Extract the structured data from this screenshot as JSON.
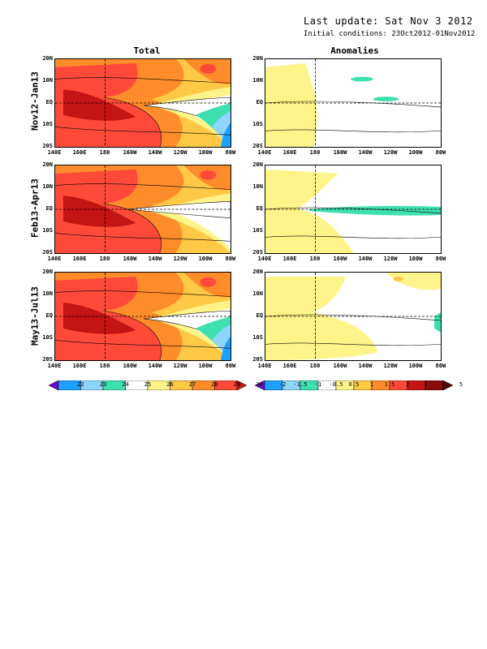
{
  "header": {
    "last_update": "Last update: Sat Nov 3 2012",
    "initial_conditions": "Initial conditions: 23Oct2012-01Nov2012"
  },
  "columns": [
    "Total",
    "Anomalies"
  ],
  "rows": [
    "Nov12-Jan13",
    "Feb13-Apr13",
    "May13-Jul13"
  ],
  "axes": {
    "y_labels": [
      "20N",
      "10N",
      "EQ",
      "10S",
      "20S"
    ],
    "x_labels": [
      "140E",
      "160E",
      "180",
      "160W",
      "140W",
      "120W",
      "100W",
      "80W"
    ]
  },
  "colorbars": {
    "total": {
      "ticks": [
        "22",
        "23",
        "24",
        "25",
        "26",
        "27",
        "28",
        "29",
        "30"
      ],
      "colors": [
        "#6a0dcc",
        "#1ea0ff",
        "#8fd6ff",
        "#3fe0b0",
        "#ffffff",
        "#fff48a",
        "#ffc845",
        "#ff8c2a",
        "#ff4a3a",
        "#c41414"
      ]
    },
    "anomalies": {
      "ticks": [
        "-2",
        "-1.5",
        "-1",
        "-0.5",
        "0.5",
        "1",
        "1.5",
        "2",
        "3",
        "4",
        "5"
      ],
      "colors": [
        "#6a0dcc",
        "#1ea0ff",
        "#8fd6ff",
        "#3fe0b0",
        "#ffffff",
        "#fff48a",
        "#ffc845",
        "#ff8c2a",
        "#ff4a3a",
        "#c41414",
        "#8a0a0a",
        "#5a0505"
      ]
    }
  },
  "contour_label": "0"
}
